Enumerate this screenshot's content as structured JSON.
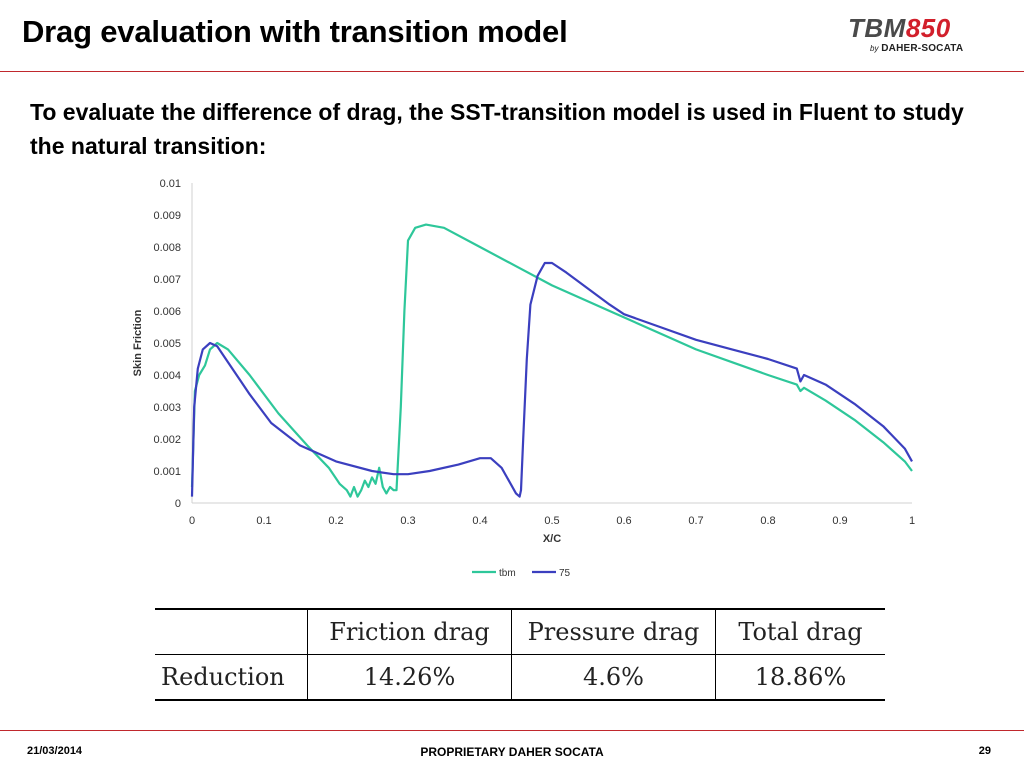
{
  "slide": {
    "title": "Drag evaluation with transition model",
    "intro": "To evaluate the difference of drag, the SST-transition model is used in Fluent to study the natural transition:"
  },
  "logo": {
    "tbm": "TBM",
    "number": "850",
    "by": "by",
    "brand": "DAHER-SOCATA"
  },
  "chart_data": {
    "type": "line",
    "xlabel": "X/C",
    "ylabel": "Skin Friction",
    "xlim": [
      0,
      1
    ],
    "ylim": [
      0,
      0.01
    ],
    "x_ticks": [
      "0",
      "0.1",
      "0.2",
      "0.3",
      "0.4",
      "0.5",
      "0.6",
      "0.7",
      "0.8",
      "0.9",
      "1"
    ],
    "y_ticks": [
      "0",
      "0.001",
      "0.002",
      "0.003",
      "0.004",
      "0.005",
      "0.006",
      "0.007",
      "0.008",
      "0.009",
      "0.01"
    ],
    "legend_position": "bottom",
    "grid": false,
    "series": [
      {
        "name": "tbm",
        "color": "#2ec79a",
        "points": [
          [
            0,
            0.0005
          ],
          [
            0.004,
            0.0035
          ],
          [
            0.01,
            0.004
          ],
          [
            0.018,
            0.0043
          ],
          [
            0.025,
            0.0048
          ],
          [
            0.035,
            0.005
          ],
          [
            0.05,
            0.0048
          ],
          [
            0.08,
            0.004
          ],
          [
            0.12,
            0.0028
          ],
          [
            0.16,
            0.0018
          ],
          [
            0.19,
            0.0011
          ],
          [
            0.205,
            0.0006
          ],
          [
            0.215,
            0.0004
          ],
          [
            0.22,
            0.0002
          ],
          [
            0.225,
            0.0005
          ],
          [
            0.23,
            0.0002
          ],
          [
            0.235,
            0.0004
          ],
          [
            0.24,
            0.0007
          ],
          [
            0.245,
            0.0005
          ],
          [
            0.25,
            0.0008
          ],
          [
            0.255,
            0.0006
          ],
          [
            0.26,
            0.0011
          ],
          [
            0.265,
            0.0005
          ],
          [
            0.27,
            0.0003
          ],
          [
            0.275,
            0.0005
          ],
          [
            0.28,
            0.0004
          ],
          [
            0.284,
            0.0004
          ],
          [
            0.29,
            0.003
          ],
          [
            0.295,
            0.006
          ],
          [
            0.3,
            0.0082
          ],
          [
            0.31,
            0.0086
          ],
          [
            0.325,
            0.0087
          ],
          [
            0.35,
            0.0086
          ],
          [
            0.4,
            0.008
          ],
          [
            0.45,
            0.0074
          ],
          [
            0.5,
            0.0068
          ],
          [
            0.55,
            0.0063
          ],
          [
            0.58,
            0.006
          ],
          [
            0.6,
            0.0058
          ],
          [
            0.65,
            0.0053
          ],
          [
            0.7,
            0.0048
          ],
          [
            0.75,
            0.0044
          ],
          [
            0.8,
            0.004
          ],
          [
            0.84,
            0.0037
          ],
          [
            0.845,
            0.0035
          ],
          [
            0.85,
            0.0036
          ],
          [
            0.88,
            0.0032
          ],
          [
            0.92,
            0.0026
          ],
          [
            0.96,
            0.0019
          ],
          [
            0.99,
            0.0013
          ],
          [
            1.0,
            0.001
          ]
        ]
      },
      {
        "name": "75",
        "color": "#3b3fbf",
        "points": [
          [
            0,
            0.0002
          ],
          [
            0.003,
            0.003
          ],
          [
            0.008,
            0.0042
          ],
          [
            0.015,
            0.0048
          ],
          [
            0.025,
            0.005
          ],
          [
            0.035,
            0.0049
          ],
          [
            0.05,
            0.0044
          ],
          [
            0.08,
            0.0034
          ],
          [
            0.11,
            0.0025
          ],
          [
            0.15,
            0.0018
          ],
          [
            0.2,
            0.0013
          ],
          [
            0.25,
            0.001
          ],
          [
            0.28,
            0.0009
          ],
          [
            0.3,
            0.0009
          ],
          [
            0.33,
            0.001
          ],
          [
            0.37,
            0.0012
          ],
          [
            0.4,
            0.0014
          ],
          [
            0.415,
            0.0014
          ],
          [
            0.43,
            0.0011
          ],
          [
            0.44,
            0.0007
          ],
          [
            0.45,
            0.0003
          ],
          [
            0.455,
            0.0002
          ],
          [
            0.457,
            0.0004
          ],
          [
            0.46,
            0.002
          ],
          [
            0.465,
            0.0045
          ],
          [
            0.47,
            0.0062
          ],
          [
            0.48,
            0.0071
          ],
          [
            0.49,
            0.0075
          ],
          [
            0.5,
            0.0075
          ],
          [
            0.52,
            0.0072
          ],
          [
            0.55,
            0.0067
          ],
          [
            0.58,
            0.0062
          ],
          [
            0.6,
            0.0059
          ],
          [
            0.65,
            0.0055
          ],
          [
            0.7,
            0.0051
          ],
          [
            0.75,
            0.0048
          ],
          [
            0.8,
            0.0045
          ],
          [
            0.84,
            0.0042
          ],
          [
            0.845,
            0.0038
          ],
          [
            0.85,
            0.004
          ],
          [
            0.88,
            0.0037
          ],
          [
            0.92,
            0.0031
          ],
          [
            0.96,
            0.0024
          ],
          [
            0.99,
            0.0017
          ],
          [
            1.0,
            0.0013
          ]
        ]
      }
    ]
  },
  "drag_table": {
    "headers": [
      "",
      "Friction drag",
      "Pressure drag",
      "Total drag"
    ],
    "row_label": "Reduction",
    "values": [
      "14.26%",
      "4.6%",
      "18.86%"
    ]
  },
  "footer": {
    "date": "21/03/2014",
    "center": "PROPRIETARY DAHER SOCATA",
    "page": "29"
  }
}
